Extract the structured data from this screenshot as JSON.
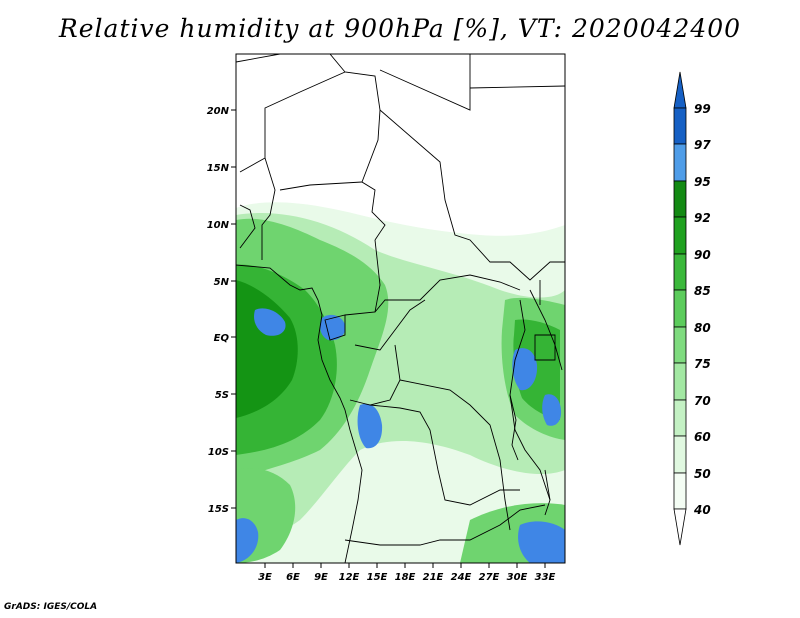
{
  "title": "Relative humidity at 900hPa [%], VT: 2020042400",
  "credit": "GrADS: IGES/COLA",
  "latitude_ticks": [
    "20N",
    "15N",
    "10N",
    "5N",
    "EQ",
    "5S",
    "10S",
    "15S"
  ],
  "longitude_ticks": [
    "3E",
    "6E",
    "9E",
    "12E",
    "15E",
    "18E",
    "21E",
    "24E",
    "27E",
    "30E",
    "33E"
  ],
  "colorbar": {
    "labels": [
      "99",
      "97",
      "95",
      "92",
      "90",
      "85",
      "80",
      "75",
      "70",
      "60",
      "50",
      "40"
    ],
    "colors": [
      "#1660c4",
      "#2a7ee0",
      "#4f9de8",
      "#138a13",
      "#1fa11f",
      "#3bb83b",
      "#5ccc5c",
      "#7fdb7f",
      "#a3e8a3",
      "#c4f1c4",
      "#e0f8e0",
      "#f4fdf4"
    ]
  },
  "palette": {
    "dry": "#ffffff",
    "light": "#e9fae9",
    "medium": "#b6ecb6",
    "green": "#6fd46f",
    "dark_green": "#35b435",
    "deep_green": "#149414",
    "blue": "#3f86e6"
  }
}
